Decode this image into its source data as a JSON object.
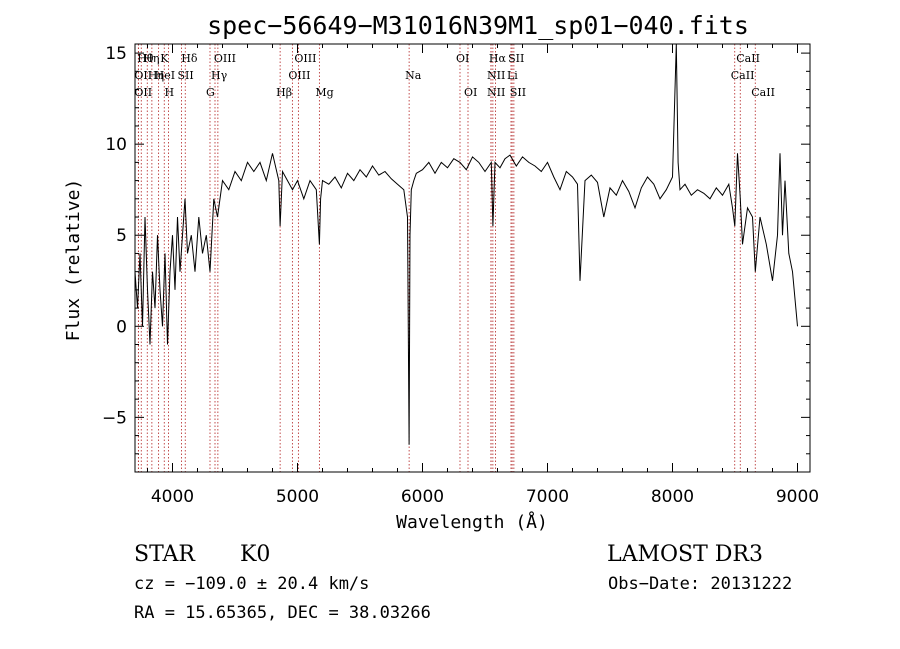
{
  "chart_data": {
    "type": "line",
    "title": "spec−56649−M31016N39M1_sp01−040.fits",
    "xlabel": "Wavelength (Å)",
    "ylabel": "Flux (relative)",
    "xlim": [
      3700,
      9100
    ],
    "ylim": [
      -8,
      15.5
    ],
    "xticks": [
      {
        "value": 4000,
        "label": "4000"
      },
      {
        "value": 5000,
        "label": "5000"
      },
      {
        "value": 6000,
        "label": "6000"
      },
      {
        "value": 7000,
        "label": "7000"
      },
      {
        "value": 8000,
        "label": "8000"
      },
      {
        "value": 9000,
        "label": "9000"
      }
    ],
    "yticks": [
      {
        "value": -5,
        "label": "−5"
      },
      {
        "value": 0,
        "label": "0"
      },
      {
        "value": 5,
        "label": "5"
      },
      {
        "value": 10,
        "label": "10"
      },
      {
        "value": 15,
        "label": "15"
      }
    ],
    "series": [
      {
        "name": "flux",
        "x": [
          3700,
          3720,
          3740,
          3760,
          3780,
          3800,
          3820,
          3840,
          3860,
          3880,
          3900,
          3920,
          3940,
          3960,
          3980,
          4000,
          4020,
          4040,
          4060,
          4080,
          4100,
          4120,
          4150,
          4180,
          4210,
          4240,
          4270,
          4300,
          4330,
          4360,
          4400,
          4450,
          4500,
          4550,
          4600,
          4650,
          4700,
          4750,
          4800,
          4850,
          4861,
          4880,
          4920,
          4960,
          5000,
          5050,
          5100,
          5150,
          5175,
          5185,
          5200,
          5250,
          5300,
          5350,
          5400,
          5450,
          5500,
          5550,
          5600,
          5650,
          5700,
          5750,
          5800,
          5850,
          5880,
          5893,
          5900,
          5910,
          5930,
          5950,
          6000,
          6050,
          6100,
          6150,
          6200,
          6250,
          6300,
          6350,
          6400,
          6450,
          6500,
          6550,
          6563,
          6580,
          6620,
          6660,
          6700,
          6750,
          6800,
          6850,
          6900,
          6950,
          7000,
          7050,
          7100,
          7150,
          7200,
          7240,
          7260,
          7300,
          7350,
          7400,
          7450,
          7500,
          7550,
          7600,
          7650,
          7700,
          7750,
          7800,
          7850,
          7900,
          7950,
          8000,
          8030,
          8045,
          8060,
          8100,
          8150,
          8200,
          8250,
          8300,
          8350,
          8400,
          8450,
          8480,
          8498,
          8520,
          8542,
          8560,
          8600,
          8640,
          8662,
          8700,
          8750,
          8800,
          8840,
          8860,
          8880,
          8900,
          8930,
          8960,
          9000
        ],
        "y": [
          3,
          1,
          4,
          0,
          6,
          2,
          -1,
          3,
          1,
          5,
          2,
          0,
          4,
          -1,
          3,
          5,
          2,
          6,
          3,
          5,
          7,
          4,
          5,
          3,
          6,
          4,
          5,
          3,
          7,
          6,
          8,
          7.5,
          8.5,
          8,
          9,
          8.5,
          9,
          8,
          9.5,
          8,
          5.5,
          8.5,
          8,
          7.5,
          8,
          7,
          8,
          7.5,
          4.5,
          7,
          8,
          7.8,
          8.2,
          7.6,
          8.4,
          8,
          8.6,
          8.2,
          8.8,
          8.3,
          8.5,
          8.1,
          7.8,
          7.5,
          6,
          -6.5,
          5,
          7.5,
          8,
          8.4,
          8.6,
          9,
          8.4,
          9,
          8.7,
          9.2,
          9,
          8.6,
          9.3,
          9,
          8.5,
          9,
          5.5,
          9,
          8.7,
          9.2,
          9.4,
          8.8,
          9.3,
          9,
          8.8,
          8.5,
          9,
          8.2,
          7.5,
          8.5,
          8.2,
          7.8,
          2.5,
          8,
          8.3,
          7.9,
          6,
          7.6,
          7.2,
          8,
          7.4,
          6.5,
          7.6,
          8.2,
          7.8,
          7,
          7.5,
          8.2,
          15.5,
          9,
          7.5,
          7.8,
          7.2,
          7.5,
          7.3,
          7,
          7.6,
          7.2,
          7.8,
          6.5,
          5.5,
          9.5,
          7,
          4.5,
          6.5,
          6,
          3,
          6,
          4.5,
          2.5,
          5,
          9.5,
          5,
          8,
          4,
          3,
          0
        ]
      }
    ],
    "lines": [
      {
        "x": 3750,
        "row": 1,
        "label": "Hθ"
      },
      {
        "x": 3727,
        "row": 2,
        "label": "OII"
      },
      {
        "x": 3727,
        "row": 3,
        "label": "OII"
      },
      {
        "x": 3798,
        "row": 1,
        "label": "Hη"
      },
      {
        "x": 3835,
        "row": 2,
        "label": "Hη"
      },
      {
        "x": 3889,
        "row": 2,
        "label": "HeI"
      },
      {
        "x": 3934,
        "row": 1,
        "label": "K"
      },
      {
        "x": 3968,
        "row": 3,
        "label": "H"
      },
      {
        "x": 4072,
        "row": 2,
        "label": "SII"
      },
      {
        "x": 4102,
        "row": 1,
        "label": "Hδ"
      },
      {
        "x": 4300,
        "row": 3,
        "label": "G"
      },
      {
        "x": 4340,
        "row": 2,
        "label": "Hγ"
      },
      {
        "x": 4363,
        "row": 1,
        "label": "OIII"
      },
      {
        "x": 4861,
        "row": 3,
        "label": "Hβ"
      },
      {
        "x": 4959,
        "row": 2,
        "label": "OIII"
      },
      {
        "x": 5007,
        "row": 1,
        "label": "OIII"
      },
      {
        "x": 5175,
        "row": 3,
        "label": "Mg"
      },
      {
        "x": 5893,
        "row": 2,
        "label": "Na"
      },
      {
        "x": 6300,
        "row": 1,
        "label": "OI"
      },
      {
        "x": 6364,
        "row": 3,
        "label": "OI"
      },
      {
        "x": 6548,
        "row": 2,
        "label": "NII"
      },
      {
        "x": 6548,
        "row": 3,
        "label": "NII"
      },
      {
        "x": 6563,
        "row": 1,
        "label": "Hα"
      },
      {
        "x": 6584,
        "row": 2,
        "label": ""
      },
      {
        "x": 6708,
        "row": 2,
        "label": "Li"
      },
      {
        "x": 6717,
        "row": 1,
        "label": "SII"
      },
      {
        "x": 6731,
        "row": 3,
        "label": "SII"
      },
      {
        "x": 8498,
        "row": 2,
        "label": "CaII"
      },
      {
        "x": 8542,
        "row": 1,
        "label": "CaII"
      },
      {
        "x": 8662,
        "row": 3,
        "label": "CaII"
      }
    ]
  },
  "info": {
    "class": "STAR",
    "subclass": "K0",
    "survey": "LAMOST DR3",
    "cz": "cz = −109.0 ± 20.4 km/s",
    "obs_date": "Obs−Date: 20131222",
    "radec": "RA =  15.65365, DEC =  38.03266"
  }
}
